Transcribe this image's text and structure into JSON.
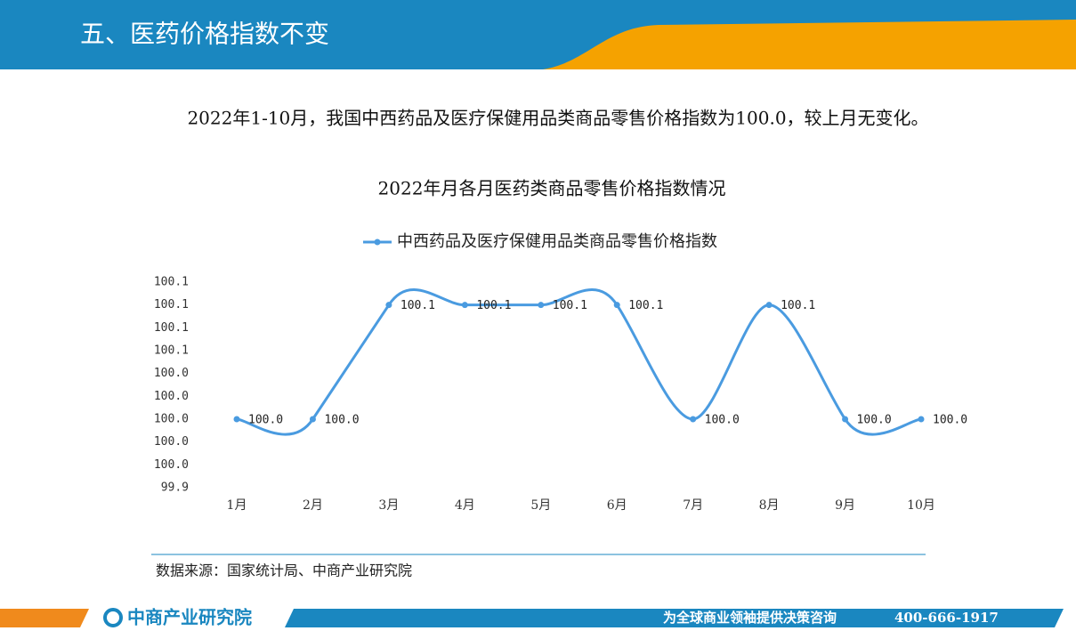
{
  "slide": {
    "heading": "五、医药价格指数不变",
    "summary": "2022年1-10月，我国中西药品及医疗保健用品类商品零售价格指数为100.0，较上月无变化。",
    "source": "数据来源：国家统计局、中商产业研究院",
    "brand": "中商产业研究院",
    "slogan": "为全球商业领袖提供决策咨询",
    "phone": "400-666-1917"
  },
  "chart_data": {
    "type": "line",
    "title": "2022年月各月医药类商品零售价格指数情况",
    "categories": [
      "1月",
      "2月",
      "3月",
      "4月",
      "5月",
      "6月",
      "7月",
      "8月",
      "9月",
      "10月"
    ],
    "series": [
      {
        "name": "中西药品及医疗保健用品类商品零售价格指数",
        "color": "#4a9be0",
        "values": [
          100.0,
          100.0,
          100.1,
          100.1,
          100.1,
          100.1,
          100.0,
          100.1,
          100.0,
          100.0
        ],
        "value_labels": [
          "100.0",
          "100.0",
          "100.1",
          "100.1",
          "100.1",
          "100.1",
          "100.0",
          "100.1",
          "100.0",
          "100.0"
        ]
      }
    ],
    "ylim": [
      99.94,
      100.12
    ],
    "yticks": [
      {
        "value": 99.94,
        "label": "99.9"
      },
      {
        "value": 99.96,
        "label": "100.0"
      },
      {
        "value": 99.98,
        "label": "100.0"
      },
      {
        "value": 100.0,
        "label": "100.0"
      },
      {
        "value": 100.02,
        "label": "100.0"
      },
      {
        "value": 100.04,
        "label": "100.0"
      },
      {
        "value": 100.06,
        "label": "100.1"
      },
      {
        "value": 100.08,
        "label": "100.1"
      },
      {
        "value": 100.1,
        "label": "100.1"
      },
      {
        "value": 100.12,
        "label": "100.1"
      }
    ],
    "legend": "top",
    "grid": false
  }
}
